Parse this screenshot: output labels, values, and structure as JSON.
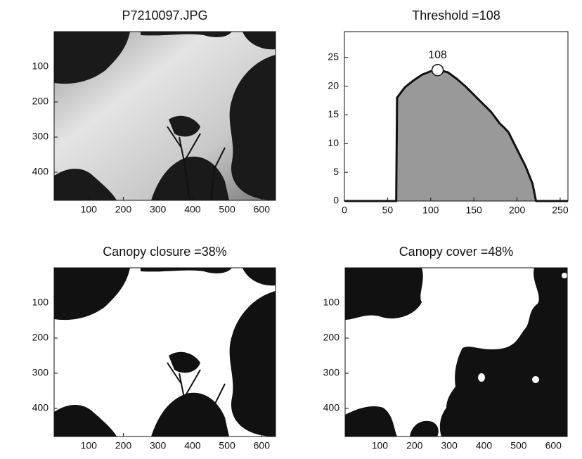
{
  "chart_data": [
    {
      "type": "image",
      "title": "P7210097.JPG",
      "xlim": [
        0,
        640
      ],
      "ylim": [
        0,
        480
      ],
      "y_reversed": true,
      "xticks": [
        100,
        200,
        300,
        400,
        500,
        600
      ],
      "yticks": [
        100,
        200,
        300,
        400
      ]
    },
    {
      "type": "area",
      "title": "Threshold =108",
      "x": [
        0,
        60,
        61,
        70,
        80,
        90,
        100,
        110,
        120,
        130,
        140,
        150,
        160,
        170,
        180,
        185,
        190,
        200,
        210,
        218,
        222,
        259
      ],
      "values": [
        0,
        0,
        18,
        19.8,
        21,
        22,
        22.6,
        22.8,
        22.4,
        21.3,
        20,
        18.5,
        17,
        15.5,
        13.5,
        12.8,
        12,
        9,
        6,
        3,
        0,
        0
      ],
      "color": "#999999",
      "line_color": "#111111",
      "xlim": [
        0,
        259
      ],
      "ylim": [
        0,
        29.5
      ],
      "xticks": [
        0,
        50,
        100,
        150,
        200,
        250
      ],
      "yticks": [
        0,
        5,
        10,
        15,
        20,
        25
      ],
      "annotation": {
        "text": "108",
        "x": 108,
        "y": 22.8
      }
    },
    {
      "type": "image",
      "title": "Canopy closure =38%",
      "xlim": [
        0,
        640
      ],
      "ylim": [
        0,
        480
      ],
      "y_reversed": true,
      "xticks": [
        100,
        200,
        300,
        400,
        500,
        600
      ],
      "yticks": [
        100,
        200,
        300,
        400
      ]
    },
    {
      "type": "image",
      "title": "Canopy cover =48%",
      "xlim": [
        0,
        640
      ],
      "ylim": [
        0,
        480
      ],
      "y_reversed": true,
      "xticks": [
        100,
        200,
        300,
        400,
        500,
        600
      ],
      "yticks": [
        100,
        200,
        300,
        400
      ]
    }
  ]
}
